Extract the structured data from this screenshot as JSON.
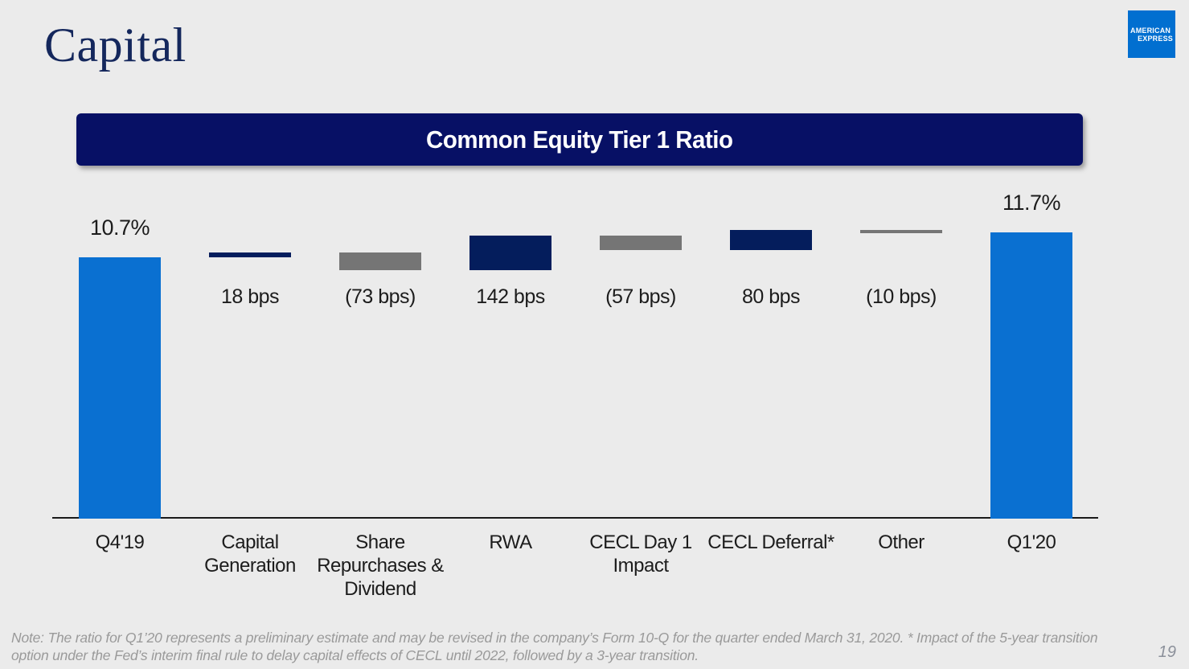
{
  "header": {
    "title": "Capital",
    "logo": {
      "line1": "AMERICAN",
      "line2": "EXPRESS"
    }
  },
  "colors": {
    "blue": "#0a70d1",
    "navy": "#041d5c",
    "gray": "#757575",
    "banner_navy": "#071065",
    "amex_blue": "#016FD0",
    "axis": "#1a1a1a",
    "background": "#ebebeb"
  },
  "chart_data": {
    "type": "bar",
    "subtype": "waterfall",
    "title": "Common Equity Tier 1 Ratio",
    "ylabel": "",
    "xlabel": "",
    "ylim_pct": [
      0,
      12
    ],
    "grid": false,
    "legend": "none",
    "start_total_pct": 10.7,
    "end_total_pct": 11.7,
    "items": [
      {
        "label": "Q4'19",
        "kind": "total",
        "pct": 10.7,
        "value_label": "10.7%",
        "color": "blue"
      },
      {
        "label": "Capital Generation",
        "kind": "delta",
        "bps": 18,
        "value_label": "18 bps",
        "color": "navy"
      },
      {
        "label": "Share Repurchases & Dividend",
        "kind": "delta",
        "bps": -73,
        "value_label": "(73 bps)",
        "color": "gray"
      },
      {
        "label": "RWA",
        "kind": "delta",
        "bps": 142,
        "value_label": "142 bps",
        "color": "navy"
      },
      {
        "label": "CECL Day 1 Impact",
        "kind": "delta",
        "bps": -57,
        "value_label": "(57 bps)",
        "color": "gray"
      },
      {
        "label": "CECL Deferral*",
        "kind": "delta",
        "bps": 80,
        "value_label": "80 bps",
        "color": "navy"
      },
      {
        "label": "Other",
        "kind": "delta",
        "bps": -10,
        "value_label": "(10 bps)",
        "color": "gray"
      },
      {
        "label": "Q1'20",
        "kind": "total",
        "pct": 11.7,
        "value_label": "11.7%",
        "color": "blue"
      }
    ]
  },
  "note": {
    "line1": "Note: The ratio for Q1’20 represents a preliminary estimate and may be revised in the company’s Form 10-Q for the quarter ended March 31, 2020. * Impact of the 5-year transition",
    "line2": "option under the Fed’s interim final rule to delay capital effects of CECL until 2022, followed by a 3-year transition."
  },
  "footer": {
    "page_number": "19"
  }
}
